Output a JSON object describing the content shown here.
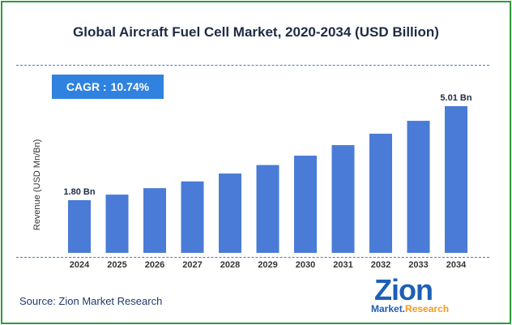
{
  "title": "Global Aircraft Fuel Cell Market, 2020-2034 (USD Billion)",
  "cagr": {
    "label": "CAGR :",
    "value": "10.74%"
  },
  "source": "Source: Zion Market Research",
  "logo": {
    "brand": "Zion",
    "sub_prefix": "Market.",
    "sub_accent": "Research"
  },
  "colors": {
    "bar": "#4a7bd6",
    "border": "#2e9b3a",
    "cagr_bg": "#2f82e0",
    "accent": "#f29a1f"
  },
  "chart_data": {
    "type": "bar",
    "title": "Global Aircraft Fuel Cell Market, 2020-2034 (USD Billion)",
    "ylabel": "Revenue (USD Mn/Bn)",
    "xlabel": "",
    "categories": [
      "2024",
      "2025",
      "2026",
      "2027",
      "2028",
      "2029",
      "2030",
      "2031",
      "2032",
      "2033",
      "2034"
    ],
    "values": [
      1.8,
      1.99,
      2.21,
      2.44,
      2.71,
      3.0,
      3.32,
      3.68,
      4.07,
      4.51,
      5.01
    ],
    "data_labels": {
      "0": "1.80 Bn",
      "10": "5.01 Bn"
    },
    "ylim": [
      0,
      5.01
    ],
    "grid": false
  }
}
